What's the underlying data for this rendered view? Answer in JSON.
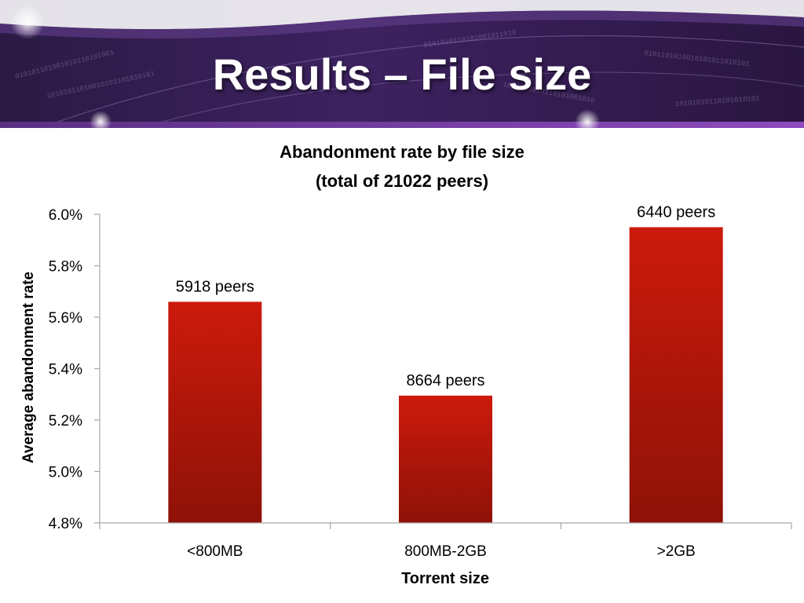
{
  "slide": {
    "title": "Results – File size"
  },
  "colors": {
    "banner_dark": "#2a1640",
    "banner_mid": "#4b2a6e",
    "banner_stripe": "#7a3fa6",
    "bar_top": "#cc1a0c",
    "bar_bottom": "#8e1208",
    "axis": "#a6a6a6"
  },
  "chart_data": {
    "type": "bar",
    "title": [
      "Abandonment rate by file size",
      "(total of 21022 peers)"
    ],
    "xlabel": "Torrent size",
    "ylabel": "Average abandonment rate",
    "categories": [
      "<800MB",
      "800MB-2GB",
      ">2GB"
    ],
    "values": [
      5.66,
      5.295,
      5.95
    ],
    "data_labels": [
      "5918 peers",
      "8664 peers",
      "6440 peers"
    ],
    "ylim": [
      4.8,
      6.0
    ],
    "yticks": [
      4.8,
      5.0,
      5.2,
      5.4,
      5.6,
      5.8,
      6.0
    ],
    "ytick_labels": [
      "4.8%",
      "5.0%",
      "5.2%",
      "5.4%",
      "5.6%",
      "5.8%",
      "6.0%"
    ],
    "grid": false,
    "legend": "none"
  }
}
